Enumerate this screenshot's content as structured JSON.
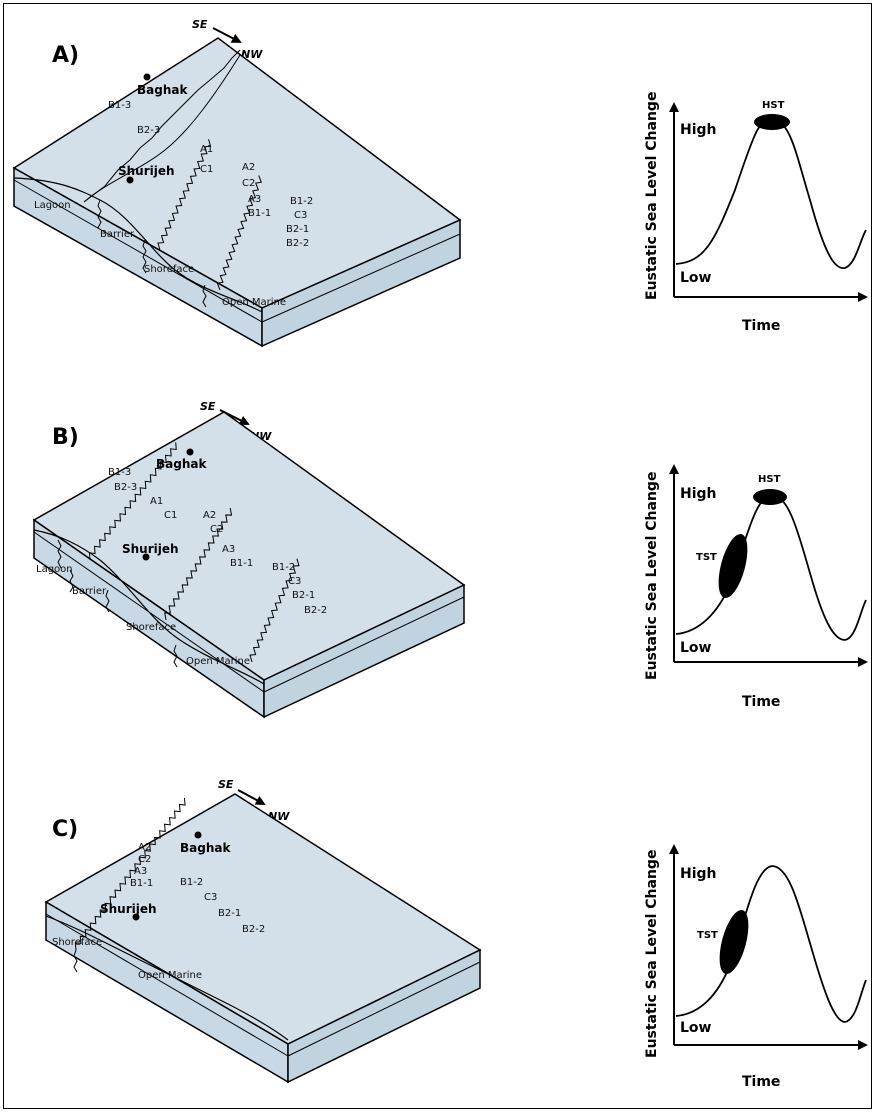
{
  "colors": {
    "block_top": "#d3e0ea",
    "block_side": "#c6d6e3",
    "line": "#000000"
  },
  "direction": {
    "from": "SE",
    "to": "NW"
  },
  "panels": [
    {
      "id": "A",
      "label": "A)",
      "towns": [
        "Baghak",
        "Shurijeh"
      ],
      "facies": [
        "Lagoon",
        "Barrier",
        "Shoreface",
        "Open Marine"
      ],
      "units": [
        "B1-3",
        "B2-3",
        "A1",
        "C1",
        "A2",
        "C2",
        "A3",
        "B1-1",
        "B1-2",
        "C3",
        "B2-1",
        "B2-2"
      ],
      "curve": {
        "ylabel": "Eustatic Sea Level Change",
        "xlabel": "Time",
        "high": "High",
        "low": "Low",
        "systems_tracts": [
          "HST"
        ]
      }
    },
    {
      "id": "B",
      "label": "B)",
      "towns": [
        "Baghak",
        "Shurijeh"
      ],
      "facies": [
        "Lagoon",
        "Barrier",
        "Shoreface",
        "Open Marine"
      ],
      "units": [
        "B1-3",
        "B2-3",
        "A1",
        "C1",
        "A2",
        "C2",
        "A3",
        "B1-1",
        "B1-2",
        "C3",
        "B2-1",
        "B2-2"
      ],
      "curve": {
        "ylabel": "Eustatic Sea Level Change",
        "xlabel": "Time",
        "high": "High",
        "low": "Low",
        "systems_tracts": [
          "HST",
          "TST"
        ]
      }
    },
    {
      "id": "C",
      "label": "C)",
      "towns": [
        "Baghak",
        "Shurijeh"
      ],
      "facies": [
        "Shoreface",
        "Open Marine"
      ],
      "units": [
        "A2",
        "C2",
        "A3",
        "B1-1",
        "B1-2",
        "C3",
        "B2-1",
        "B2-2"
      ],
      "curve": {
        "ylabel": "Eustatic Sea Level Change",
        "xlabel": "Time",
        "high": "High",
        "low": "Low",
        "systems_tracts": [
          "TST"
        ]
      }
    }
  ]
}
